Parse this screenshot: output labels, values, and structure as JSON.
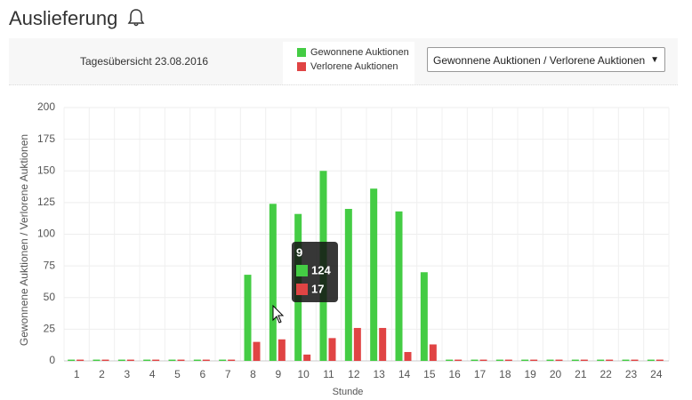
{
  "header": {
    "title": "Auslieferung"
  },
  "toolbar": {
    "summary": "Tagesübersicht 23.08.2016",
    "dropdown": "Gewonnene Auktionen / Verlorene Auktionen"
  },
  "chart_data": {
    "type": "bar",
    "categories": [
      "1",
      "2",
      "3",
      "4",
      "5",
      "6",
      "7",
      "8",
      "9",
      "10",
      "11",
      "12",
      "13",
      "14",
      "15",
      "16",
      "17",
      "18",
      "19",
      "20",
      "21",
      "22",
      "23",
      "24"
    ],
    "series": [
      {
        "name": "Gewonnene Auktionen",
        "color": "#44cc44",
        "values": [
          1,
          1,
          1,
          1,
          1,
          1,
          1,
          68,
          124,
          116,
          150,
          120,
          136,
          118,
          70,
          1,
          1,
          1,
          1,
          1,
          1,
          1,
          1,
          1
        ]
      },
      {
        "name": "Verlorene Auktionen",
        "color": "#e04444",
        "values": [
          1,
          1,
          1,
          1,
          1,
          1,
          1,
          15,
          17,
          5,
          18,
          26,
          26,
          7,
          13,
          1,
          1,
          1,
          1,
          1,
          1,
          1,
          1,
          1
        ]
      }
    ],
    "ylim": [
      0,
      200
    ],
    "yticks": [
      0,
      25,
      50,
      75,
      100,
      125,
      150,
      175,
      200
    ],
    "grid": true,
    "y_label": "Gewonnene Auktionen / Verlorene Auktionen",
    "x_label": "Stunde",
    "tooltip_index": 8
  }
}
